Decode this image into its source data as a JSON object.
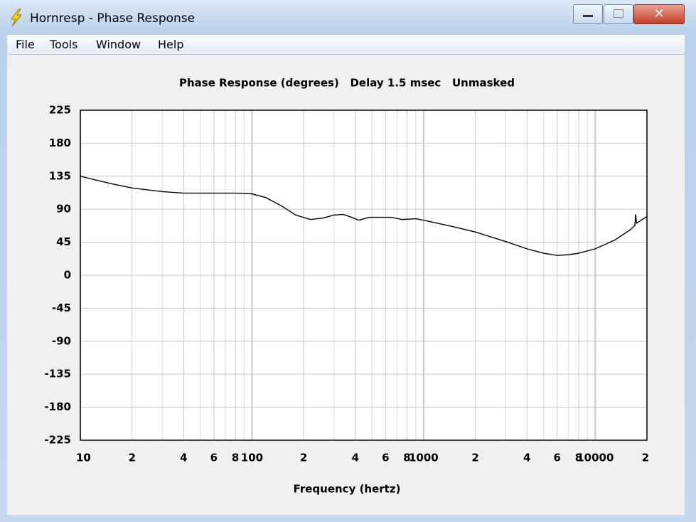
{
  "window": {
    "title": "Hornresp - Phase Response",
    "menu": [
      "File",
      "Tools",
      "Window",
      "Help"
    ]
  },
  "chart_data": {
    "type": "line",
    "title": "Phase Response (degrees)   Delay 1.5 msec   Unmasked",
    "x_label": "Frequency (hertz)",
    "x_scale": "log",
    "xlim": [
      10,
      20000
    ],
    "ylim": [
      -225,
      225
    ],
    "xticks": [
      10,
      {
        "value": 20,
        "label": "2"
      },
      {
        "value": 40,
        "label": "4"
      },
      {
        "value": 60,
        "label": "6"
      },
      {
        "value": 80,
        "label": "8"
      },
      100,
      {
        "value": 200,
        "label": "2"
      },
      {
        "value": 400,
        "label": "4"
      },
      {
        "value": 600,
        "label": "6"
      },
      {
        "value": 800,
        "label": "8"
      },
      1000,
      {
        "value": 2000,
        "label": "2"
      },
      {
        "value": 4000,
        "label": "4"
      },
      {
        "value": 6000,
        "label": "6"
      },
      {
        "value": 8000,
        "label": "8"
      },
      10000,
      {
        "value": 20000,
        "label": "2"
      }
    ],
    "x_minor_grid": [
      30,
      50,
      70,
      90,
      300,
      500,
      700,
      900,
      3000,
      5000,
      7000,
      9000
    ],
    "yticks": [
      225,
      180,
      135,
      90,
      45,
      0,
      -45,
      -90,
      -135,
      -180,
      -225
    ],
    "grid": true,
    "series": [
      {
        "name": "Phase",
        "color": "#000000",
        "x": [
          10,
          15,
          20,
          30,
          40,
          60,
          80,
          100,
          120,
          150,
          180,
          220,
          260,
          300,
          340,
          380,
          420,
          480,
          550,
          650,
          750,
          900,
          1000,
          1200,
          1500,
          2000,
          3000,
          4000,
          5000,
          6000,
          7000,
          8000,
          10000,
          13000,
          16000,
          17000,
          17200,
          17400,
          20000
        ],
        "values": [
          135,
          125,
          119,
          114,
          112,
          112,
          112,
          111,
          106,
          94,
          82,
          76,
          78,
          82,
          83,
          79,
          75,
          79,
          79,
          79,
          76,
          77,
          75,
          71,
          66,
          59,
          46,
          36,
          30,
          27,
          28,
          30,
          36,
          48,
          62,
          68,
          83,
          71,
          80
        ]
      }
    ]
  }
}
